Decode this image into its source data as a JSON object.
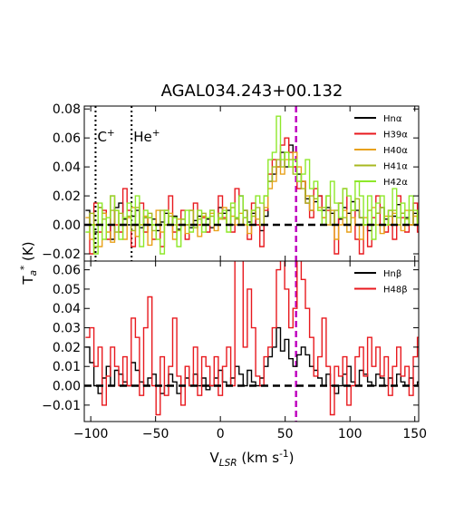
{
  "title": "AGAL034.243+00.132",
  "ylabel": "T$_a$$^*$ (K)",
  "xlabel": "V$_{LSR}$ (km s$^{-1}$)",
  "chart_data": [
    {
      "type": "line",
      "panel": "top",
      "xlim": [
        -105,
        153
      ],
      "ylim": [
        -0.025,
        0.082
      ],
      "xticks": [
        -100,
        -50,
        0,
        50,
        100,
        150
      ],
      "yticks": [
        -0.02,
        0.0,
        0.02,
        0.04,
        0.06,
        0.08
      ],
      "ytick_labels": [
        "−0.02",
        "0.00",
        "0.02",
        "0.04",
        "0.06",
        "0.08"
      ],
      "vlines": [
        {
          "x": -96.3,
          "label": "C$^+$",
          "color": "#000000",
          "style": "dotted"
        },
        {
          "x": -68.5,
          "label": "He$^+$",
          "color": "#000000",
          "style": "dotted"
        },
        {
          "x": 58.4,
          "label": "",
          "color": "#c000c0",
          "style": "dashed"
        }
      ],
      "legend_position": "top-right",
      "series": [
        {
          "name": "Hn$\\alpha$",
          "color": "#000000",
          "x_start": -104,
          "x_step": 3.2,
          "values": [
            0.01,
            0.0,
            -0.005,
            0.012,
            0.008,
            0.0,
            -0.01,
            0.012,
            0.015,
            0.004,
            0.0,
            0.006,
            0.01,
            -0.002,
            0.005,
            0.0,
            0.004,
            -0.004,
            0.002,
            0.008,
            0.0,
            0.006,
            -0.003,
            0.004,
            0.0,
            -0.002,
            0.003,
            0.006,
            0.0,
            0.004,
            -0.002,
            0.0,
            0.012,
            0.008,
            0.01,
            0.0,
            0.005,
            0.02,
            0.01,
            0.002,
            0.008,
            0.0,
            -0.004,
            0.006,
            0.03,
            0.035,
            0.04,
            0.05,
            0.04,
            0.055,
            0.045,
            0.035,
            0.03,
            0.018,
            0.01,
            0.016,
            0.02,
            0.01,
            0.012,
            0.008,
            0.0,
            0.004,
            0.012,
            0.008,
            0.016,
            0.01,
            0.005,
            0.0,
            -0.004,
            0.0,
            0.008,
            0.012,
            0.004,
            0.0,
            0.006,
            0.014,
            0.008,
            0.005,
            0.0,
            0.008,
            0.004
          ]
        },
        {
          "name": "H39$\\alpha$",
          "color": "#e8191e",
          "x_start": -104,
          "x_step": 3.2,
          "values": [
            0.0,
            -0.02,
            0.015,
            -0.005,
            0.01,
            -0.01,
            0.02,
            0.0,
            -0.005,
            0.025,
            0.01,
            -0.015,
            0.0,
            0.015,
            -0.005,
            0.005,
            -0.01,
            0.0,
            -0.015,
            0.01,
            0.02,
            -0.005,
            0.0,
            0.01,
            -0.01,
            0.0,
            0.015,
            0.0,
            0.005,
            -0.005,
            0.01,
            0.0,
            0.02,
            0.005,
            0.0,
            -0.005,
            0.025,
            0.0,
            0.005,
            -0.01,
            0.015,
            0.0,
            -0.015,
            0.01,
            0.035,
            0.045,
            0.04,
            0.055,
            0.06,
            0.05,
            0.04,
            0.025,
            0.03,
            0.015,
            0.005,
            0.025,
            0.02,
            0.005,
            0.01,
            0.0,
            -0.02,
            0.015,
            0.025,
            0.0,
            0.01,
            -0.01,
            -0.02,
            0.0,
            -0.015,
            0.005,
            0.02,
            0.0,
            -0.005,
            0.01,
            -0.01,
            0.02,
            0.005,
            -0.005,
            0.0,
            0.015,
            -0.005
          ]
        },
        {
          "name": "H40$\\alpha$",
          "color": "#e8a11a",
          "x_start": -104,
          "x_step": 3.2,
          "values": [
            0.005,
            -0.01,
            0.0,
            -0.015,
            0.008,
            -0.005,
            -0.012,
            0.01,
            0.0,
            -0.01,
            0.005,
            0.012,
            -0.008,
            0.0,
            0.006,
            -0.014,
            0.0,
            0.01,
            -0.005,
            0.0,
            0.008,
            -0.01,
            0.004,
            0.0,
            -0.006,
            0.01,
            0.0,
            -0.008,
            0.006,
            0.0,
            0.008,
            -0.004,
            0.004,
            0.012,
            0.0,
            0.006,
            0.0,
            0.008,
            0.0,
            -0.006,
            0.01,
            0.004,
            0.0,
            0.012,
            0.025,
            0.03,
            0.04,
            0.035,
            0.045,
            0.04,
            0.05,
            0.04,
            0.03,
            0.02,
            0.01,
            0.018,
            0.012,
            0.005,
            0.0,
            0.01,
            -0.01,
            0.0,
            0.01,
            -0.005,
            0.005,
            0.0,
            -0.01,
            0.005,
            0.0,
            0.012,
            0.0,
            -0.006,
            0.006,
            0.0,
            0.008,
            0.0,
            -0.004,
            0.01,
            0.0,
            0.006,
            0.0
          ]
        },
        {
          "name": "H41$\\alpha$",
          "color": "#a8b820",
          "x_start": -104,
          "x_step": 3.2,
          "values": [
            0.0,
            0.008,
            -0.015,
            0.012,
            0.004,
            0.0,
            0.01,
            -0.005,
            0.008,
            0.0,
            0.006,
            -0.004,
            0.012,
            0.0,
            0.005,
            0.008,
            -0.004,
            0.0,
            0.01,
            0.0,
            0.006,
            0.0,
            -0.004,
            0.004,
            0.0,
            0.01,
            -0.002,
            0.004,
            0.008,
            0.0,
            0.006,
            0.0,
            0.008,
            0.004,
            0.0,
            0.012,
            0.004,
            0.0,
            0.01,
            0.0,
            0.006,
            0.012,
            0.0,
            0.02,
            0.03,
            0.04,
            0.045,
            0.04,
            0.05,
            0.045,
            0.035,
            0.03,
            0.025,
            0.015,
            0.02,
            0.018,
            0.01,
            0.012,
            0.02,
            0.0,
            0.01,
            0.015,
            0.005,
            0.0,
            0.01,
            0.018,
            0.005,
            0.0,
            0.01,
            0.0,
            0.008,
            0.012,
            0.0,
            0.006,
            0.01,
            0.0,
            0.008,
            0.004,
            0.01,
            0.0,
            0.006
          ]
        },
        {
          "name": "H42$\\alpha$",
          "color": "#8ee82a",
          "x_start": -104,
          "x_step": 3.2,
          "values": [
            -0.005,
            0.0,
            -0.02,
            0.015,
            -0.01,
            0.005,
            0.02,
            0.01,
            -0.01,
            0.005,
            0.015,
            0.0,
            0.02,
            -0.015,
            0.01,
            0.005,
            0.0,
            -0.01,
            -0.02,
            0.01,
            0.0,
            0.005,
            -0.015,
            0.0,
            0.01,
            -0.005,
            0.0,
            0.01,
            -0.005,
            0.005,
            0.01,
            0.0,
            0.005,
            0.01,
            -0.005,
            0.015,
            0.005,
            0.02,
            0.005,
            0.0,
            0.01,
            0.02,
            0.015,
            0.02,
            0.045,
            0.05,
            0.075,
            0.045,
            0.05,
            0.04,
            0.045,
            0.03,
            0.035,
            0.045,
            0.025,
            0.03,
            0.01,
            0.0,
            0.02,
            0.03,
            0.015,
            0.005,
            0.025,
            0.02,
            0.01,
            0.03,
            0.02,
            0.0,
            0.02,
            -0.01,
            0.015,
            0.02,
            0.0,
            0.01,
            0.025,
            0.005,
            0.015,
            0.0,
            0.02,
            0.01,
            0.0
          ]
        }
      ]
    },
    {
      "type": "line",
      "panel": "bottom",
      "xlim": [
        -105,
        153
      ],
      "ylim": [
        -0.0185,
        0.0645
      ],
      "xticks": [
        -100,
        -50,
        0,
        50,
        100,
        150
      ],
      "xtick_labels": [
        "−100",
        "−50",
        "0",
        "50",
        "100",
        "150"
      ],
      "yticks": [
        -0.01,
        0.0,
        0.01,
        0.02,
        0.03,
        0.04,
        0.05,
        0.06
      ],
      "ytick_labels": [
        "−0.01",
        "0.00",
        "0.01",
        "0.02",
        "0.03",
        "0.04",
        "0.05",
        "0.06"
      ],
      "vlines": [
        {
          "x": 58.4,
          "label": "",
          "color": "#c000c0",
          "style": "dashed"
        }
      ],
      "legend_position": "top-right",
      "series": [
        {
          "name": "Hn$\\beta$",
          "color": "#000000",
          "x_start": -104,
          "x_step": 3.2,
          "values": [
            0.02,
            0.012,
            0.0,
            -0.004,
            0.004,
            0.01,
            0.0,
            0.008,
            0.006,
            0.002,
            0.0,
            0.012,
            0.008,
            0.002,
            0.0,
            0.004,
            0.006,
            0.0,
            -0.004,
            0.0,
            0.006,
            0.002,
            -0.004,
            0.0,
            0.004,
            0.0,
            0.006,
            0.0,
            0.004,
            -0.002,
            0.0,
            0.004,
            0.008,
            0.002,
            0.0,
            0.004,
            0.01,
            0.006,
            0.0,
            0.008,
            0.002,
            0.0,
            0.004,
            0.01,
            0.015,
            0.02,
            0.03,
            0.018,
            0.024,
            0.014,
            0.01,
            0.016,
            0.02,
            0.016,
            0.01,
            0.008,
            0.004,
            0.0,
            0.006,
            0.0,
            -0.004,
            0.0,
            0.006,
            0.01,
            0.002,
            0.0,
            0.008,
            0.006,
            0.002,
            0.0,
            0.006,
            0.004,
            0.0,
            0.004,
            0.0,
            0.006,
            0.002,
            0.0,
            0.004,
            0.0,
            0.002
          ]
        },
        {
          "name": "H48$\\beta$",
          "color": "#e8191e",
          "x_start": -104,
          "x_step": 3.2,
          "values": [
            0.025,
            0.03,
            0.01,
            0.02,
            -0.01,
            0.005,
            0.02,
            0.01,
            0.0,
            0.015,
            0.0,
            0.035,
            0.025,
            -0.005,
            0.03,
            0.046,
            0.0,
            -0.015,
            0.015,
            -0.005,
            0.01,
            0.035,
            0.005,
            -0.01,
            0.01,
            0.0,
            0.02,
            -0.005,
            0.015,
            0.01,
            0.0,
            0.015,
            -0.005,
            0.01,
            0.02,
            0.0,
            0.065,
            0.065,
            0.02,
            0.05,
            0.03,
            0.005,
            0.0,
            0.015,
            0.02,
            0.03,
            0.06,
            0.065,
            0.05,
            0.03,
            0.04,
            0.065,
            0.055,
            0.04,
            0.025,
            0.005,
            0.015,
            0.035,
            0.01,
            -0.015,
            0.01,
            0.005,
            0.015,
            -0.01,
            0.0,
            0.015,
            0.02,
            0.005,
            0.025,
            0.01,
            0.02,
            0.005,
            0.015,
            -0.005,
            0.01,
            0.02,
            0.005,
            0.01,
            -0.005,
            0.015,
            0.025
          ]
        }
      ]
    }
  ]
}
